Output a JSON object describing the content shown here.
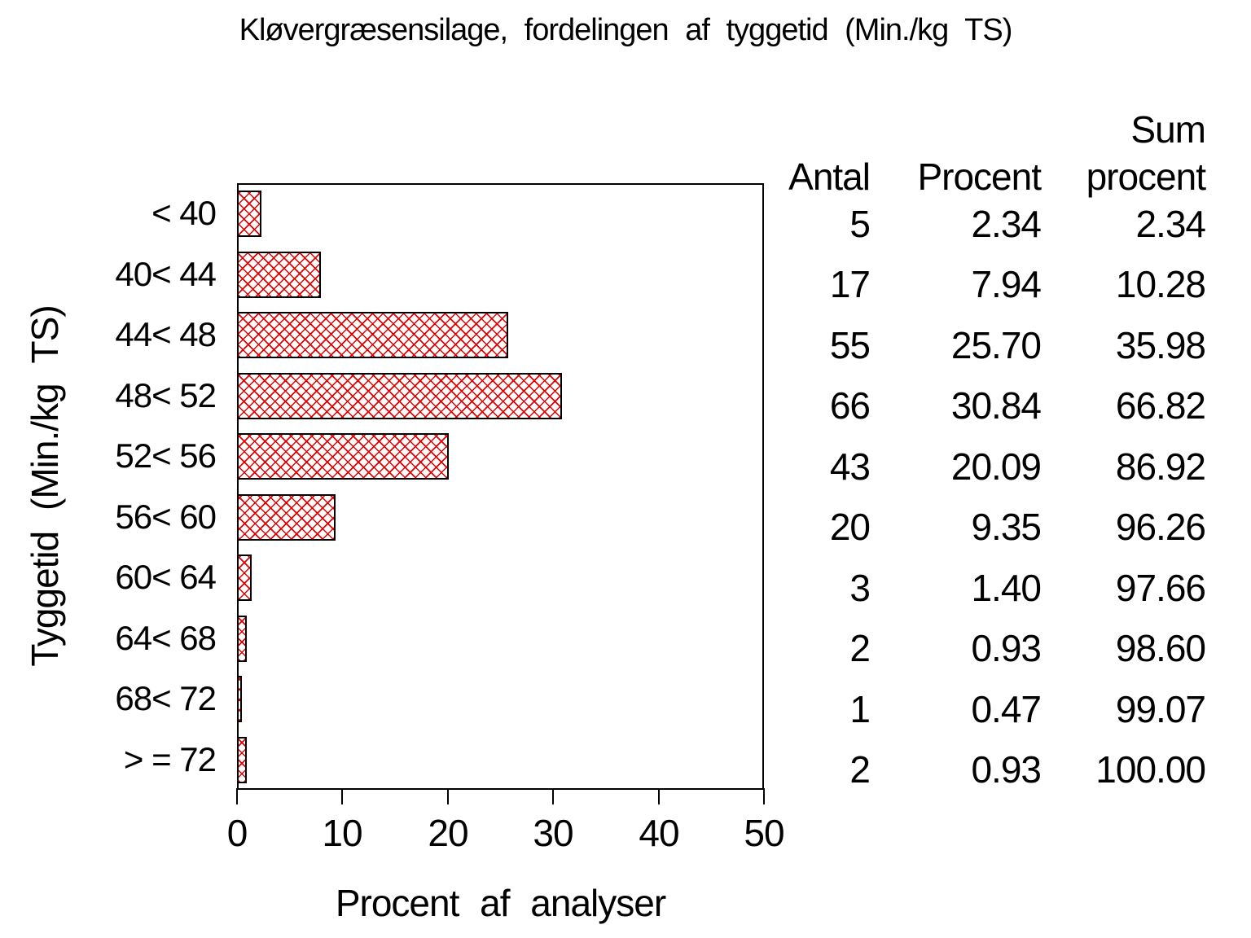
{
  "chart_data": {
    "type": "bar",
    "orientation": "horizontal",
    "title": "Kløvergræsensilage, fordelingen af tyggetid (Min./kg TS)",
    "xlabel": "Procent af analyser",
    "ylabel": "Tyggetid (Min./kg TS)",
    "categories": [
      "< 40",
      "40< 44",
      "44< 48",
      "48< 52",
      "52< 56",
      "56< 60",
      "60< 64",
      "64< 68",
      "68< 72",
      "> = 72"
    ],
    "values": [
      2.34,
      7.94,
      25.7,
      30.84,
      20.09,
      9.35,
      1.4,
      0.93,
      0.47,
      0.93
    ],
    "counts": [
      5,
      17,
      55,
      66,
      43,
      20,
      3,
      2,
      1,
      2
    ],
    "cum_percent": [
      2.34,
      10.28,
      35.98,
      66.82,
      86.92,
      96.26,
      97.66,
      98.6,
      99.07,
      100.0
    ],
    "xticks": [
      0,
      10,
      20,
      30,
      40,
      50
    ],
    "xlim": [
      0,
      50
    ],
    "grid": false,
    "bar_fill_pattern": "crosshatch",
    "bar_pattern_color": "#e40000",
    "bar_border_color": "#000000",
    "background_color": "#ffffff",
    "text_color": "#000000"
  },
  "table": {
    "headers": {
      "antal": "Antal",
      "procent": "Procent",
      "sum_line1": "Sum",
      "sum_line2": "procent"
    },
    "rows": [
      {
        "antal": "5",
        "procent": "2.34",
        "sum_procent": "2.34"
      },
      {
        "antal": "17",
        "procent": "7.94",
        "sum_procent": "10.28"
      },
      {
        "antal": "55",
        "procent": "25.70",
        "sum_procent": "35.98"
      },
      {
        "antal": "66",
        "procent": "30.84",
        "sum_procent": "66.82"
      },
      {
        "antal": "43",
        "procent": "20.09",
        "sum_procent": "86.92"
      },
      {
        "antal": "20",
        "procent": "9.35",
        "sum_procent": "96.26"
      },
      {
        "antal": "3",
        "procent": "1.40",
        "sum_procent": "97.66"
      },
      {
        "antal": "2",
        "procent": "0.93",
        "sum_procent": "98.60"
      },
      {
        "antal": "1",
        "procent": "0.47",
        "sum_procent": "99.07"
      },
      {
        "antal": "2",
        "procent": "0.93",
        "sum_procent": "100.00"
      }
    ]
  }
}
